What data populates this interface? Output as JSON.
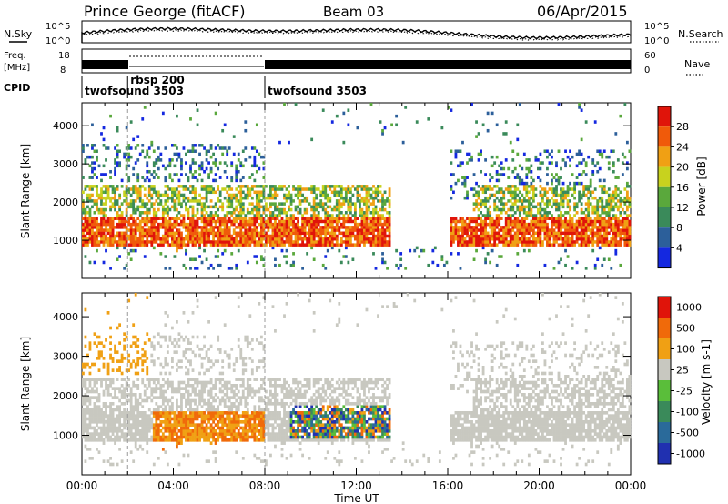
{
  "header": {
    "station": "Prince George (fitACF)",
    "beam": "Beam 03",
    "date": "06/Apr/2015"
  },
  "labels": {
    "nsky": "N.Sky",
    "nsearch": "N.Search",
    "freq_top": "Freq.",
    "freq_unit": "[MHz]",
    "nave": "Nave",
    "cpid": "CPID",
    "nsky_tick_hi": "10^5",
    "nsky_tick_lo": "10^0",
    "nsearch_tick_hi": "10^5",
    "nsearch_tick_lo": "10^0",
    "freq_tick_hi": "18",
    "freq_tick_lo": "8",
    "nave_tick_hi": "60",
    "nave_tick_lo": "0"
  },
  "cpid_segments": [
    {
      "label": "twofsound 3503",
      "start_h": 0,
      "end_h": 2
    },
    {
      "label": "rbsp 200",
      "start_h": 2,
      "end_h": 8
    },
    {
      "label": "twofsound 3503",
      "start_h": 8,
      "end_h": 24
    }
  ],
  "chart_data": [
    {
      "type": "heatmap",
      "name": "power",
      "xlabel": "Time UT",
      "ylabel": "Slant Range [km]",
      "xlim": [
        0,
        24
      ],
      "ylim": [
        0,
        4600
      ],
      "xticks": [
        "00:00",
        "04:00",
        "08:00",
        "12:00",
        "16:00",
        "20:00",
        "00:00"
      ],
      "yticks": [
        1000,
        2000,
        3000,
        4000
      ],
      "colorbar_title": "Power [dB]",
      "colorbar_ticks": [
        "4",
        "8",
        "12",
        "16",
        "20",
        "24",
        "28"
      ],
      "colorbar_colors": [
        "#1428e0",
        "#2c5f9a",
        "#3a8a5a",
        "#5aa83c",
        "#c8d21e",
        "#f0a014",
        "#f05a0a",
        "#e0140a"
      ]
    },
    {
      "type": "heatmap",
      "name": "velocity",
      "xlabel": "Time UT",
      "ylabel": "Slant Range [km]",
      "xlim": [
        0,
        24
      ],
      "ylim": [
        0,
        4600
      ],
      "xticks": [
        "00:00",
        "04:00",
        "08:00",
        "12:00",
        "16:00",
        "20:00",
        "00:00"
      ],
      "yticks": [
        1000,
        2000,
        3000,
        4000
      ],
      "colorbar_title": "Velocity [m s-1]",
      "colorbar_ticks": [
        "1000",
        "500",
        "100",
        "25",
        "-25",
        "-100",
        "-500",
        "-1000"
      ],
      "colorbar_colors": [
        "#2030b0",
        "#2a6a9a",
        "#3a8a5a",
        "#5abe3a",
        "#c8c8c0",
        "#f0a014",
        "#f06a0a",
        "#e0140a"
      ]
    }
  ]
}
